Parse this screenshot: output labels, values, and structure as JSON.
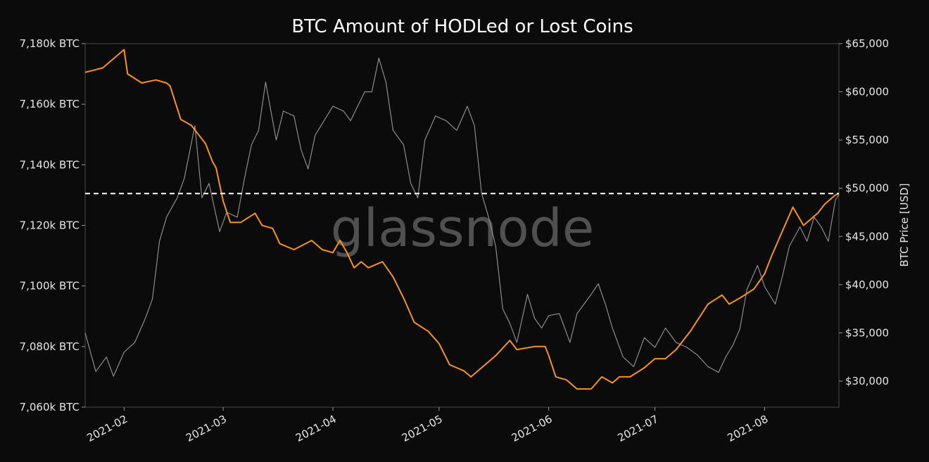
{
  "chart_data": {
    "type": "line",
    "title": "BTC Amount of HODLed or Lost Coins",
    "watermark": "glassnode",
    "ylabel_right": "BTC Price [USD]",
    "ylabel_left": "",
    "x_ticks": [
      "2021-02",
      "2021-03",
      "2021-04",
      "2021-05",
      "2021-06",
      "2021-07",
      "2021-08"
    ],
    "x_range": [
      "2021-01-21",
      "2021-08-22"
    ],
    "y_left_ticks": [
      "7,060k BTC",
      "7,080k BTC",
      "7,100k BTC",
      "7,120k BTC",
      "7,140k BTC",
      "7,160k BTC",
      "7,180k BTC"
    ],
    "y_left_tick_values": [
      7060,
      7080,
      7100,
      7120,
      7140,
      7160,
      7180
    ],
    "y_left_range": [
      7060,
      7180
    ],
    "y_right_ticks": [
      "$30,000",
      "$35,000",
      "$40,000",
      "$45,000",
      "$50,000",
      "$55,000",
      "$60,000",
      "$65,000"
    ],
    "y_right_tick_values": [
      30000,
      35000,
      40000,
      45000,
      50000,
      55000,
      60000,
      65000
    ],
    "y_right_range": [
      27300,
      65000
    ],
    "reference_line": {
      "axis": "left",
      "value": 7130.5,
      "style": "dashed",
      "color": "#ffffff"
    },
    "grid": false,
    "series": [
      {
        "axis": "left",
        "color": "#f7931a",
        "points": [
          [
            "2021-01-21",
            7170.5
          ],
          [
            "2021-01-26",
            7172
          ],
          [
            "2021-01-29",
            7175
          ],
          [
            "2021-02-01",
            7178
          ],
          [
            "2021-02-02",
            7170
          ],
          [
            "2021-02-06",
            7167
          ],
          [
            "2021-02-10",
            7168
          ],
          [
            "2021-02-13",
            7167
          ],
          [
            "2021-02-14",
            7166
          ],
          [
            "2021-02-17",
            7155
          ],
          [
            "2021-02-20",
            7153
          ],
          [
            "2021-02-24",
            7147
          ],
          [
            "2021-02-26",
            7141
          ],
          [
            "2021-02-27",
            7139
          ],
          [
            "2021-03-01",
            7128
          ],
          [
            "2021-03-03",
            7121
          ],
          [
            "2021-03-06",
            7121
          ],
          [
            "2021-03-10",
            7124
          ],
          [
            "2021-03-12",
            7120
          ],
          [
            "2021-03-15",
            7119
          ],
          [
            "2021-03-17",
            7114
          ],
          [
            "2021-03-21",
            7112
          ],
          [
            "2021-03-26",
            7115
          ],
          [
            "2021-03-29",
            7112
          ],
          [
            "2021-04-01",
            7111
          ],
          [
            "2021-04-03",
            7115
          ],
          [
            "2021-04-05",
            7111
          ],
          [
            "2021-04-07",
            7106
          ],
          [
            "2021-04-09",
            7108
          ],
          [
            "2021-04-11",
            7106
          ],
          [
            "2021-04-15",
            7108
          ],
          [
            "2021-04-18",
            7103
          ],
          [
            "2021-04-21",
            7096
          ],
          [
            "2021-04-24",
            7088
          ],
          [
            "2021-04-28",
            7085
          ],
          [
            "2021-05-01",
            7081
          ],
          [
            "2021-05-04",
            7074
          ],
          [
            "2021-05-06",
            7073
          ],
          [
            "2021-05-08",
            7072
          ],
          [
            "2021-05-10",
            7070
          ],
          [
            "2021-05-13",
            7073
          ],
          [
            "2021-05-17",
            7077
          ],
          [
            "2021-05-21",
            7082
          ],
          [
            "2021-05-23",
            7079
          ],
          [
            "2021-05-28",
            7080
          ],
          [
            "2021-05-31",
            7080
          ],
          [
            "2021-06-01",
            7077
          ],
          [
            "2021-06-03",
            7070
          ],
          [
            "2021-06-06",
            7069
          ],
          [
            "2021-06-09",
            7066
          ],
          [
            "2021-06-13",
            7066
          ],
          [
            "2021-06-16",
            7070
          ],
          [
            "2021-06-19",
            7068
          ],
          [
            "2021-06-21",
            7070
          ],
          [
            "2021-06-24",
            7070
          ],
          [
            "2021-06-28",
            7073
          ],
          [
            "2021-07-01",
            7076
          ],
          [
            "2021-07-04",
            7076
          ],
          [
            "2021-07-07",
            7079
          ],
          [
            "2021-07-11",
            7085
          ],
          [
            "2021-07-16",
            7094
          ],
          [
            "2021-07-20",
            7097
          ],
          [
            "2021-07-22",
            7094
          ],
          [
            "2021-07-25",
            7096
          ],
          [
            "2021-07-29",
            7099
          ],
          [
            "2021-08-01",
            7104
          ],
          [
            "2021-08-03",
            7110
          ],
          [
            "2021-08-06",
            7118
          ],
          [
            "2021-08-09",
            7126
          ],
          [
            "2021-08-12",
            7120
          ],
          [
            "2021-08-16",
            7124
          ],
          [
            "2021-08-18",
            7127
          ],
          [
            "2021-08-21",
            7130
          ],
          [
            "2021-08-22",
            7130.5
          ]
        ]
      },
      {
        "axis": "right",
        "color": "#8c8c8c",
        "points": [
          [
            "2021-01-21",
            35000
          ],
          [
            "2021-01-24",
            31000
          ],
          [
            "2021-01-27",
            32500
          ],
          [
            "2021-01-29",
            30500
          ],
          [
            "2021-02-01",
            33000
          ],
          [
            "2021-02-04",
            34000
          ],
          [
            "2021-02-07",
            36500
          ],
          [
            "2021-02-09",
            38500
          ],
          [
            "2021-02-11",
            44500
          ],
          [
            "2021-02-13",
            47000
          ],
          [
            "2021-02-16",
            49000
          ],
          [
            "2021-02-18",
            51000
          ],
          [
            "2021-02-21",
            56500
          ],
          [
            "2021-02-23",
            49000
          ],
          [
            "2021-02-25",
            50500
          ],
          [
            "2021-02-28",
            45500
          ],
          [
            "2021-03-02",
            47500
          ],
          [
            "2021-03-05",
            47000
          ],
          [
            "2021-03-07",
            51000
          ],
          [
            "2021-03-09",
            54500
          ],
          [
            "2021-03-11",
            56000
          ],
          [
            "2021-03-13",
            61000
          ],
          [
            "2021-03-16",
            55000
          ],
          [
            "2021-03-18",
            58000
          ],
          [
            "2021-03-21",
            57500
          ],
          [
            "2021-03-23",
            54000
          ],
          [
            "2021-03-25",
            52000
          ],
          [
            "2021-03-27",
            55500
          ],
          [
            "2021-04-01",
            58500
          ],
          [
            "2021-04-04",
            58000
          ],
          [
            "2021-04-06",
            57000
          ],
          [
            "2021-04-10",
            60000
          ],
          [
            "2021-04-12",
            60000
          ],
          [
            "2021-04-14",
            63500
          ],
          [
            "2021-04-16",
            61000
          ],
          [
            "2021-04-18",
            56000
          ],
          [
            "2021-04-21",
            54500
          ],
          [
            "2021-04-23",
            50500
          ],
          [
            "2021-04-25",
            49000
          ],
          [
            "2021-04-27",
            55000
          ],
          [
            "2021-04-30",
            57500
          ],
          [
            "2021-05-03",
            57000
          ],
          [
            "2021-05-06",
            56000
          ],
          [
            "2021-05-09",
            58500
          ],
          [
            "2021-05-11",
            56500
          ],
          [
            "2021-05-13",
            49500
          ],
          [
            "2021-05-15",
            47000
          ],
          [
            "2021-05-17",
            44000
          ],
          [
            "2021-05-19",
            37500
          ],
          [
            "2021-05-21",
            36000
          ],
          [
            "2021-05-23",
            34000
          ],
          [
            "2021-05-26",
            39000
          ],
          [
            "2021-05-28",
            36500
          ],
          [
            "2021-05-30",
            35500
          ],
          [
            "2021-06-01",
            36800
          ],
          [
            "2021-06-04",
            37000
          ],
          [
            "2021-06-07",
            34000
          ],
          [
            "2021-06-09",
            37000
          ],
          [
            "2021-06-13",
            39000
          ],
          [
            "2021-06-15",
            40100
          ],
          [
            "2021-06-17",
            38000
          ],
          [
            "2021-06-19",
            35500
          ],
          [
            "2021-06-22",
            32500
          ],
          [
            "2021-06-25",
            31500
          ],
          [
            "2021-06-28",
            34500
          ],
          [
            "2021-07-01",
            33500
          ],
          [
            "2021-07-04",
            35500
          ],
          [
            "2021-07-07",
            34000
          ],
          [
            "2021-07-10",
            33500
          ],
          [
            "2021-07-13",
            32700
          ],
          [
            "2021-07-16",
            31500
          ],
          [
            "2021-07-19",
            30900
          ],
          [
            "2021-07-21",
            32500
          ],
          [
            "2021-07-23",
            33700
          ],
          [
            "2021-07-25",
            35400
          ],
          [
            "2021-07-27",
            39500
          ],
          [
            "2021-07-30",
            42000
          ],
          [
            "2021-08-01",
            39800
          ],
          [
            "2021-08-04",
            38000
          ],
          [
            "2021-08-06",
            40800
          ],
          [
            "2021-08-08",
            44000
          ],
          [
            "2021-08-11",
            46000
          ],
          [
            "2021-08-13",
            44500
          ],
          [
            "2021-08-15",
            47000
          ],
          [
            "2021-08-17",
            46000
          ],
          [
            "2021-08-19",
            44500
          ],
          [
            "2021-08-21",
            48800
          ],
          [
            "2021-08-22",
            49300
          ]
        ]
      }
    ]
  }
}
